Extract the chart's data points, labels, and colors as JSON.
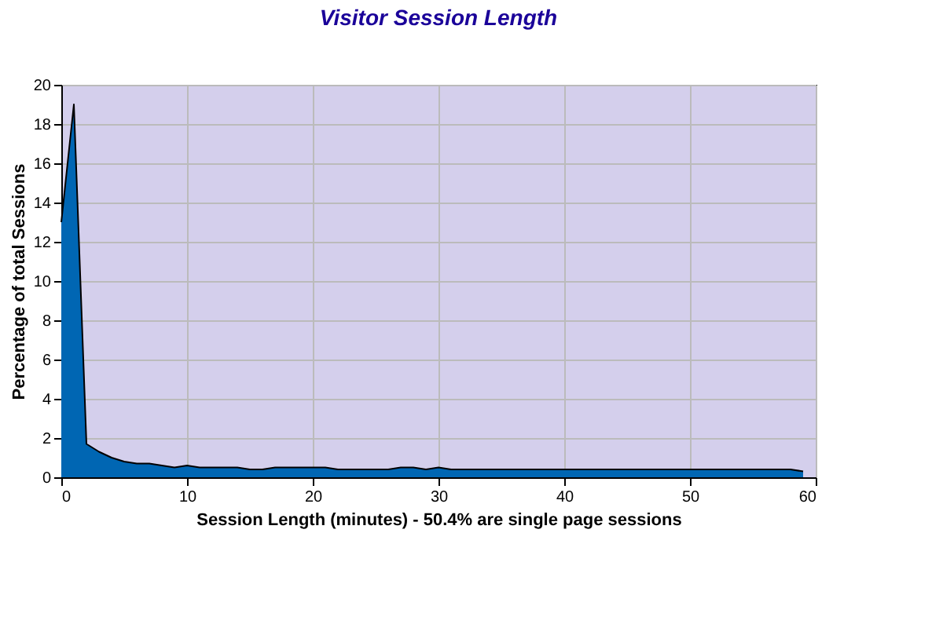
{
  "chart_data": {
    "type": "area",
    "title": "Visitor Session Length",
    "xlabel": "Session Length (minutes) - 50.4% are single page sessions",
    "ylabel": "Percentage of total Sessions",
    "x": [
      0,
      1,
      2,
      3,
      4,
      5,
      6,
      7,
      8,
      9,
      10,
      11,
      12,
      13,
      14,
      15,
      16,
      17,
      18,
      19,
      20,
      21,
      22,
      23,
      24,
      25,
      26,
      27,
      28,
      29,
      30,
      31,
      32,
      33,
      34,
      35,
      36,
      37,
      38,
      39,
      40,
      41,
      42,
      43,
      44,
      45,
      46,
      47,
      48,
      49,
      50,
      51,
      52,
      53,
      54,
      55,
      56,
      57,
      58,
      59
    ],
    "series": [
      {
        "color": "#0066b3",
        "values": [
          13,
          19,
          1.7,
          1.3,
          1.0,
          0.8,
          0.7,
          0.7,
          0.6,
          0.5,
          0.6,
          0.5,
          0.5,
          0.5,
          0.5,
          0.4,
          0.4,
          0.5,
          0.5,
          0.5,
          0.5,
          0.5,
          0.4,
          0.4,
          0.4,
          0.4,
          0.4,
          0.5,
          0.5,
          0.4,
          0.5,
          0.4,
          0.4,
          0.4,
          0.4,
          0.4,
          0.4,
          0.4,
          0.4,
          0.4,
          0.4,
          0.4,
          0.4,
          0.4,
          0.4,
          0.4,
          0.4,
          0.4,
          0.4,
          0.4,
          0.4,
          0.4,
          0.4,
          0.4,
          0.4,
          0.4,
          0.4,
          0.4,
          0.4,
          0.3
        ]
      }
    ],
    "xlim": [
      0,
      60
    ],
    "xticks": [
      0,
      10,
      20,
      30,
      40,
      50,
      60
    ],
    "ylim": [
      0,
      20
    ],
    "yticks": [
      0,
      2,
      4,
      6,
      8,
      10,
      12,
      14,
      16,
      18,
      20
    ],
    "grid": true
  }
}
